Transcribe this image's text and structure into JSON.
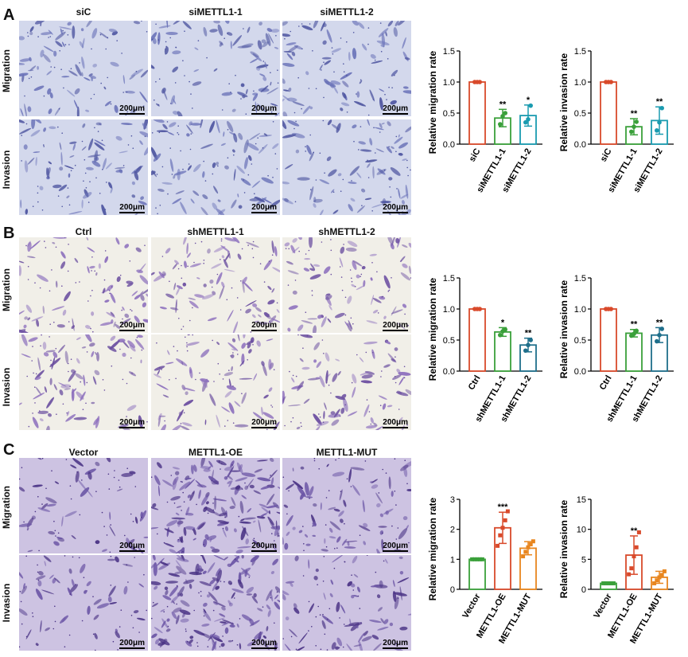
{
  "panels": [
    {
      "letter": "A",
      "columns": [
        "siC",
        "siMETTL1-1",
        "siMETTL1-2"
      ],
      "rows": [
        "Migration",
        "Invasion"
      ],
      "scale_label": "200μm",
      "image_style": "blue",
      "charts": [
        {
          "type": "bar",
          "ylabel": "Relative migration rate",
          "categories": [
            "siC",
            "siMETTL1-1",
            "siMETTL1-2"
          ],
          "values": [
            1.0,
            0.42,
            0.46
          ],
          "errors": [
            0.0,
            0.14,
            0.17
          ],
          "points": [
            [
              1.0,
              1.0,
              1.0
            ],
            [
              0.32,
              0.45,
              0.5
            ],
            [
              0.35,
              0.4,
              0.62
            ]
          ],
          "sig": [
            "",
            "**",
            "*"
          ],
          "ylim": [
            0,
            1.5
          ],
          "yticks": [
            "0.0",
            "0.5",
            "1.0",
            "1.5"
          ],
          "colors": [
            "#d94a2b",
            "#3aa03a",
            "#1a9bb0"
          ]
        },
        {
          "type": "bar",
          "ylabel": "Relative invasion rate",
          "categories": [
            "siC",
            "siMETTL1-1",
            "siMETTL1-2"
          ],
          "values": [
            1.0,
            0.28,
            0.38
          ],
          "errors": [
            0.0,
            0.13,
            0.22
          ],
          "points": [
            [
              1.0,
              1.0,
              1.0
            ],
            [
              0.2,
              0.28,
              0.36
            ],
            [
              0.22,
              0.35,
              0.58
            ]
          ],
          "sig": [
            "",
            "**",
            "**"
          ],
          "ylim": [
            0,
            1.5
          ],
          "yticks": [
            "0.0",
            "0.5",
            "1.0",
            "1.5"
          ],
          "colors": [
            "#d94a2b",
            "#3aa03a",
            "#1a9bb0"
          ]
        }
      ]
    },
    {
      "letter": "B",
      "columns": [
        "Ctrl",
        "shMETTL1-1",
        "shMETTL1-2"
      ],
      "rows": [
        "Migration",
        "Invasion"
      ],
      "scale_label": "200μm",
      "image_style": "light",
      "charts": [
        {
          "type": "bar",
          "ylabel": "Relative migration rate",
          "categories": [
            "Ctrl",
            "shMETTL1-1",
            "shMETTL1-2"
          ],
          "values": [
            1.0,
            0.63,
            0.42
          ],
          "errors": [
            0.0,
            0.07,
            0.11
          ],
          "points": [
            [
              1.0,
              1.0,
              1.0
            ],
            [
              0.58,
              0.64,
              0.67
            ],
            [
              0.33,
              0.42,
              0.5
            ]
          ],
          "sig": [
            "",
            "*",
            "**"
          ],
          "ylim": [
            0,
            1.5
          ],
          "yticks": [
            "0.0",
            "0.5",
            "1.0",
            "1.5"
          ],
          "colors": [
            "#d94a2b",
            "#3aa03a",
            "#1f6f8b"
          ]
        },
        {
          "type": "bar",
          "ylabel": "Relative invasion rate",
          "categories": [
            "Ctrl",
            "shMETTL1-1",
            "shMETTL1-2"
          ],
          "values": [
            1.0,
            0.61,
            0.58
          ],
          "errors": [
            0.0,
            0.06,
            0.12
          ],
          "points": [
            [
              1.0,
              1.0,
              1.0
            ],
            [
              0.57,
              0.6,
              0.65
            ],
            [
              0.48,
              0.58,
              0.68
            ]
          ],
          "sig": [
            "",
            "**",
            "**"
          ],
          "ylim": [
            0,
            1.5
          ],
          "yticks": [
            "0.0",
            "0.5",
            "1.0",
            "1.5"
          ],
          "colors": [
            "#d94a2b",
            "#3aa03a",
            "#1f6f8b"
          ]
        }
      ]
    },
    {
      "letter": "C",
      "columns": [
        "Vector",
        "METTL1-OE",
        "METTL1-MUT"
      ],
      "rows": [
        "Migration",
        "Invasion"
      ],
      "scale_label": "200μm",
      "image_style": "purple",
      "charts": [
        {
          "type": "bar",
          "ylabel": "Relative migration rate",
          "categories": [
            "Vector",
            "METTL1-OE",
            "METTL1-MUT"
          ],
          "values": [
            1.0,
            2.05,
            1.37
          ],
          "errors": [
            0.0,
            0.52,
            0.22
          ],
          "points": [
            [
              1.0,
              1.0,
              1.0,
              1.0,
              1.0
            ],
            [
              1.45,
              1.8,
              2.05,
              2.3,
              2.6
            ],
            [
              1.1,
              1.25,
              1.4,
              1.5,
              1.6
            ]
          ],
          "sig": [
            "",
            "***",
            ""
          ],
          "ylim": [
            0,
            3
          ],
          "yticks": [
            "0",
            "1",
            "2",
            "3"
          ],
          "colors": [
            "#3aa03a",
            "#d94a2b",
            "#e8861f"
          ]
        },
        {
          "type": "bar",
          "ylabel": "Relative invasion rate",
          "categories": [
            "Vector",
            "METTL1-OE",
            "METTL1-MUT"
          ],
          "values": [
            1.0,
            5.7,
            2.0
          ],
          "errors": [
            0.0,
            3.2,
            1.0
          ],
          "points": [
            [
              1.0,
              1.0,
              1.0,
              1.0,
              1.0
            ],
            [
              2.5,
              3.5,
              5.5,
              7.0,
              9.5
            ],
            [
              1.0,
              1.5,
              2.0,
              2.4,
              3.0
            ]
          ],
          "sig": [
            "",
            "**",
            ""
          ],
          "ylim": [
            0,
            15
          ],
          "yticks": [
            "0",
            "5",
            "10",
            "15"
          ],
          "colors": [
            "#3aa03a",
            "#d94a2b",
            "#e8861f"
          ]
        }
      ]
    }
  ],
  "chart_data": [
    {
      "type": "bar",
      "ylabel": "Relative migration rate",
      "categories": [
        "siC",
        "siMETTL1-1",
        "siMETTL1-2"
      ],
      "values": [
        1.0,
        0.42,
        0.46
      ],
      "ylim": [
        0,
        1.5
      ]
    },
    {
      "type": "bar",
      "ylabel": "Relative invasion rate",
      "categories": [
        "siC",
        "siMETTL1-1",
        "siMETTL1-2"
      ],
      "values": [
        1.0,
        0.28,
        0.38
      ],
      "ylim": [
        0,
        1.5
      ]
    },
    {
      "type": "bar",
      "ylabel": "Relative migration rate",
      "categories": [
        "Ctrl",
        "shMETTL1-1",
        "shMETTL1-2"
      ],
      "values": [
        1.0,
        0.63,
        0.42
      ],
      "ylim": [
        0,
        1.5
      ]
    },
    {
      "type": "bar",
      "ylabel": "Relative invasion rate",
      "categories": [
        "Ctrl",
        "shMETTL1-1",
        "shMETTL1-2"
      ],
      "values": [
        1.0,
        0.61,
        0.58
      ],
      "ylim": [
        0,
        1.5
      ]
    },
    {
      "type": "bar",
      "ylabel": "Relative migration rate",
      "categories": [
        "Vector",
        "METTL1-OE",
        "METTL1-MUT"
      ],
      "values": [
        1.0,
        2.05,
        1.37
      ],
      "ylim": [
        0,
        3
      ]
    },
    {
      "type": "bar",
      "ylabel": "Relative invasion rate",
      "categories": [
        "Vector",
        "METTL1-OE",
        "METTL1-MUT"
      ],
      "values": [
        1.0,
        5.7,
        2.0
      ],
      "ylim": [
        0,
        15
      ]
    }
  ]
}
